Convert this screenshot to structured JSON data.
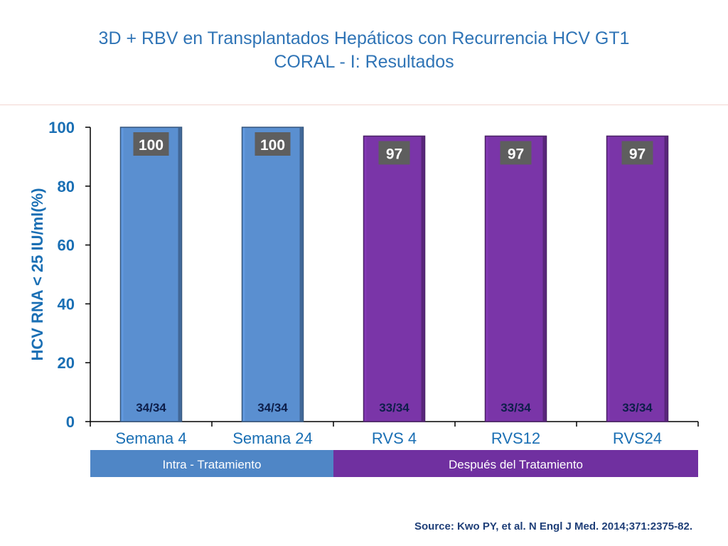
{
  "slide": {
    "title_line1": "3D + RBV en Transplantados Hepáticos con Recurrencia HCV GT1",
    "title_line2": "CORAL - I: Resultados",
    "source": "Source: Kwo PY, et al. N Engl J Med. 2014;371:2375-82."
  },
  "colors": {
    "title": "#2f74b6",
    "axis_text": "#1a6fb4",
    "bar_blue": "#5a8fd0",
    "bar_purple": "#7a35a8",
    "group_blue": "#4f86c6",
    "group_purple": "#7030a0",
    "label_box": "#5e5e5e",
    "source_text": "#1f3f78"
  },
  "chart_data": {
    "type": "bar",
    "categories": [
      "Semana 4",
      "Semana 24",
      "RVS 4",
      "RVS12",
      "RVS24"
    ],
    "values": [
      100,
      100,
      97,
      97,
      97
    ],
    "value_labels": [
      "100",
      "100",
      "97",
      "97",
      "97"
    ],
    "fractions": [
      "34/34",
      "34/34",
      "33/34",
      "33/34",
      "33/34"
    ],
    "bar_colors": [
      "#5a8fd0",
      "#5a8fd0",
      "#7a35a8",
      "#7a35a8",
      "#7a35a8"
    ],
    "ylabel": "HCV RNA < 25 IU/ml(%)",
    "xlabel": "",
    "ylim": [
      0,
      100
    ],
    "yticks": [
      0,
      20,
      40,
      60,
      80,
      100
    ],
    "grid": false,
    "groups": [
      {
        "label": "Intra - Tratamiento",
        "span": [
          0,
          1
        ],
        "color": "#4f86c6"
      },
      {
        "label": "Después del Tratamiento",
        "span": [
          2,
          4
        ],
        "color": "#7030a0"
      }
    ]
  }
}
